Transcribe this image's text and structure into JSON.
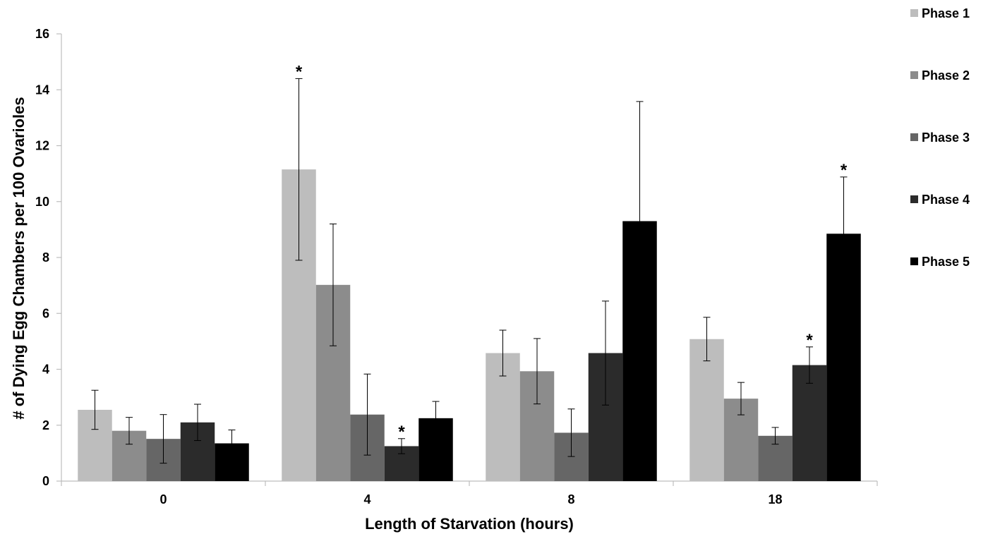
{
  "chart_data": {
    "type": "bar",
    "xlabel": "Length of Starvation (hours)",
    "ylabel": "# of Dying Egg Chambers per 100 Ovarioles",
    "ylim": [
      0,
      16
    ],
    "yticks": [
      "0",
      "2",
      "4",
      "6",
      "8",
      "10",
      "12",
      "14",
      "16"
    ],
    "categories": [
      "0",
      "4",
      "8",
      "18"
    ],
    "legend_position": "right",
    "grid": false,
    "series": [
      {
        "name": "Phase 1",
        "color": "#bdbdbd",
        "values": [
          2.55,
          11.15,
          4.58,
          5.08
        ],
        "errors": [
          0.7,
          3.25,
          0.82,
          0.78
        ],
        "significant": [
          false,
          true,
          false,
          false
        ]
      },
      {
        "name": "Phase 2",
        "color": "#8c8c8c",
        "values": [
          1.8,
          7.02,
          3.93,
          2.95
        ],
        "errors": [
          0.48,
          2.18,
          1.17,
          0.58
        ],
        "significant": [
          false,
          false,
          false,
          false
        ]
      },
      {
        "name": "Phase 3",
        "color": "#666666",
        "values": [
          1.51,
          2.38,
          1.73,
          1.62
        ],
        "errors": [
          0.87,
          1.45,
          0.85,
          0.3
        ],
        "significant": [
          false,
          false,
          false,
          false
        ]
      },
      {
        "name": "Phase 4",
        "color": "#2b2b2b",
        "values": [
          2.1,
          1.25,
          4.58,
          4.15
        ],
        "errors": [
          0.65,
          0.27,
          1.86,
          0.65
        ],
        "significant": [
          false,
          true,
          false,
          true
        ]
      },
      {
        "name": "Phase 5",
        "color": "#000000",
        "values": [
          1.35,
          2.25,
          9.3,
          8.85
        ],
        "errors": [
          0.48,
          0.6,
          4.28,
          2.03
        ],
        "significant": [
          false,
          false,
          false,
          true
        ]
      }
    ],
    "significance_marker": "*"
  }
}
